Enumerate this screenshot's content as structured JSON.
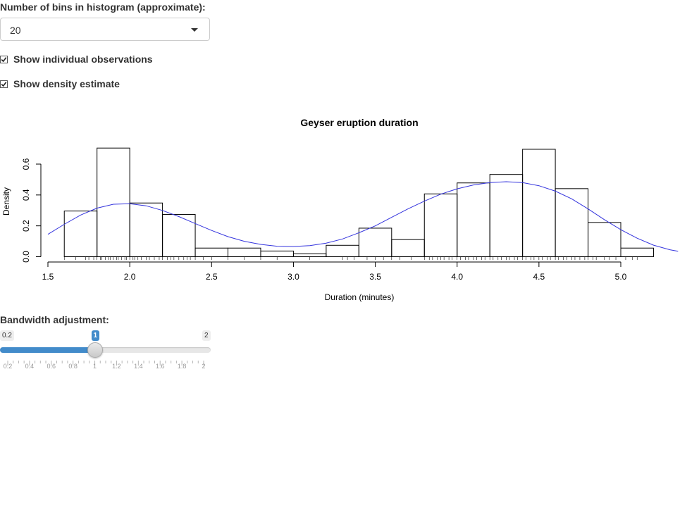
{
  "bins": {
    "label": "Number of bins in histogram (approximate):",
    "selected": "20"
  },
  "checkboxes": {
    "individual": {
      "label": "Show individual observations",
      "checked": true
    },
    "density": {
      "label": "Show density estimate",
      "checked": true
    }
  },
  "slider": {
    "label": "Bandwidth adjustment:",
    "min_label": "0.2",
    "max_label": "2",
    "value_label": "1",
    "min": 0.2,
    "max": 2,
    "value": 1,
    "grid_labels": [
      "0.2",
      "0.4",
      "0.6",
      "0.8",
      "1",
      "1.2",
      "1.4",
      "1.6",
      "1.8",
      "2"
    ]
  },
  "colors": {
    "density_line": "#3333dd",
    "slider_accent": "#428bca"
  },
  "chart_data": {
    "type": "bar",
    "title": "Geyser eruption duration",
    "xlabel": "Duration (minutes)",
    "ylabel": "Density",
    "x_ticks": [
      "1.5",
      "2.0",
      "2.5",
      "3.0",
      "3.5",
      "4.0",
      "4.5",
      "5.0"
    ],
    "y_ticks": [
      "0.0",
      "0.2",
      "0.4",
      "0.6"
    ],
    "xlim": [
      1.5,
      5.35
    ],
    "ylim": [
      0,
      0.7
    ],
    "bins": [
      {
        "x0": 1.6,
        "x1": 1.8,
        "density": 0.296
      },
      {
        "x0": 1.8,
        "x1": 2.0,
        "density": 0.704
      },
      {
        "x0": 2.0,
        "x1": 2.2,
        "density": 0.348
      },
      {
        "x0": 2.2,
        "x1": 2.4,
        "density": 0.274
      },
      {
        "x0": 2.4,
        "x1": 2.6,
        "density": 0.056
      },
      {
        "x0": 2.6,
        "x1": 2.8,
        "density": 0.056
      },
      {
        "x0": 2.8,
        "x1": 3.0,
        "density": 0.037
      },
      {
        "x0": 3.0,
        "x1": 3.2,
        "density": 0.019
      },
      {
        "x0": 3.2,
        "x1": 3.4,
        "density": 0.074
      },
      {
        "x0": 3.4,
        "x1": 3.6,
        "density": 0.185
      },
      {
        "x0": 3.6,
        "x1": 3.8,
        "density": 0.111
      },
      {
        "x0": 3.8,
        "x1": 4.0,
        "density": 0.407
      },
      {
        "x0": 4.0,
        "x1": 4.2,
        "density": 0.478
      },
      {
        "x0": 4.2,
        "x1": 4.4,
        "density": 0.533
      },
      {
        "x0": 4.4,
        "x1": 4.6,
        "density": 0.696
      },
      {
        "x0": 4.6,
        "x1": 4.8,
        "density": 0.441
      },
      {
        "x0": 4.8,
        "x1": 5.0,
        "density": 0.222
      },
      {
        "x0": 5.0,
        "x1": 5.2,
        "density": 0.056
      }
    ],
    "density_curve": {
      "x": [
        1.5,
        1.6,
        1.7,
        1.8,
        1.9,
        2.0,
        2.1,
        2.2,
        2.3,
        2.4,
        2.5,
        2.6,
        2.7,
        2.8,
        2.9,
        3.0,
        3.1,
        3.2,
        3.3,
        3.4,
        3.5,
        3.6,
        3.7,
        3.8,
        3.9,
        4.0,
        4.1,
        4.2,
        4.3,
        4.4,
        4.5,
        4.6,
        4.7,
        4.8,
        4.9,
        5.0,
        5.1,
        5.2,
        5.3,
        5.35
      ],
      "y": [
        0.145,
        0.21,
        0.27,
        0.315,
        0.34,
        0.343,
        0.33,
        0.3,
        0.26,
        0.215,
        0.17,
        0.13,
        0.1,
        0.08,
        0.068,
        0.066,
        0.072,
        0.088,
        0.115,
        0.155,
        0.2,
        0.255,
        0.31,
        0.36,
        0.405,
        0.44,
        0.465,
        0.48,
        0.486,
        0.48,
        0.46,
        0.425,
        0.375,
        0.31,
        0.24,
        0.175,
        0.12,
        0.075,
        0.045,
        0.035
      ]
    },
    "observations": [
      1.6,
      1.67,
      1.73,
      1.75,
      1.78,
      1.8,
      1.82,
      1.83,
      1.85,
      1.87,
      1.88,
      1.9,
      1.92,
      1.93,
      1.95,
      1.97,
      1.98,
      2.0,
      2.02,
      2.03,
      2.05,
      2.07,
      2.1,
      2.12,
      2.15,
      2.18,
      2.2,
      2.23,
      2.25,
      2.27,
      2.3,
      2.33,
      2.35,
      2.37,
      2.4,
      2.45,
      2.5,
      2.6,
      2.7,
      2.8,
      2.9,
      3.1,
      3.3,
      3.33,
      3.37,
      3.45,
      3.5,
      3.55,
      3.6,
      3.65,
      3.72,
      3.8,
      3.83,
      3.85,
      3.88,
      3.9,
      3.92,
      3.95,
      3.97,
      4.0,
      4.02,
      4.05,
      4.07,
      4.1,
      4.12,
      4.15,
      4.17,
      4.2,
      4.22,
      4.25,
      4.27,
      4.3,
      4.32,
      4.35,
      4.37,
      4.4,
      4.42,
      4.45,
      4.47,
      4.5,
      4.52,
      4.55,
      4.57,
      4.6,
      4.62,
      4.65,
      4.67,
      4.7,
      4.72,
      4.75,
      4.78,
      4.8,
      4.83,
      4.85,
      4.9,
      4.93,
      4.97,
      5.03,
      5.07,
      5.1
    ]
  }
}
